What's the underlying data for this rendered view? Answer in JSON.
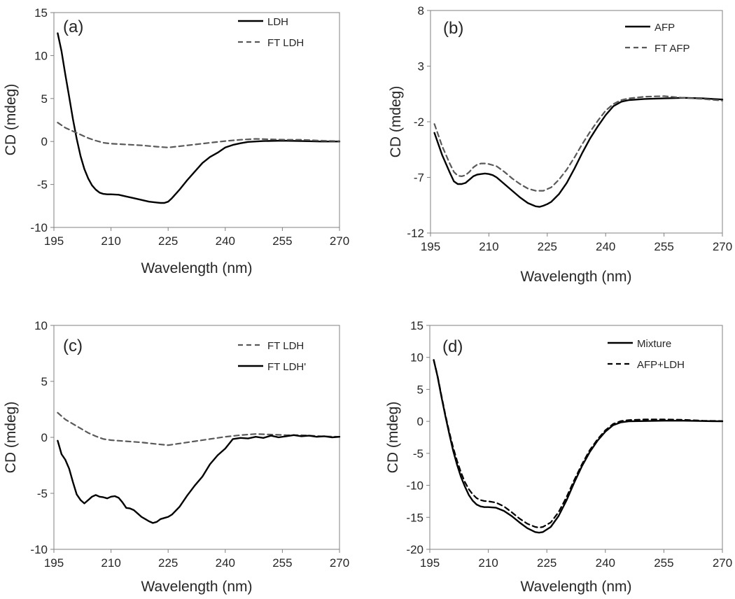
{
  "figure": {
    "panels": [
      "a",
      "b",
      "c",
      "d"
    ]
  },
  "chart_data": [
    {
      "panel": "a",
      "type": "line",
      "panel_label": "(a)",
      "xlabel": "Wavelength (nm)",
      "ylabel": "CD (mdeg)",
      "xlim": [
        195,
        270
      ],
      "ylim": [
        -10,
        15
      ],
      "xticks": [
        195,
        210,
        225,
        240,
        255,
        270
      ],
      "yticks": [
        -10,
        -5,
        0,
        5,
        10,
        15
      ],
      "legend_position": "top-right",
      "series": [
        {
          "name": "LDH",
          "style": "solid",
          "color": "#000000",
          "x": [
            196,
            197,
            198,
            199,
            200,
            201,
            202,
            203,
            204,
            205,
            206,
            207,
            208,
            209,
            210,
            212,
            214,
            216,
            218,
            220,
            222,
            223,
            224,
            225,
            226,
            228,
            230,
            232,
            234,
            236,
            238,
            240,
            242,
            244,
            246,
            248,
            250,
            255,
            260,
            265,
            270
          ],
          "y": [
            12.6,
            10.5,
            7.8,
            5.2,
            2.6,
            0.3,
            -1.7,
            -3.2,
            -4.3,
            -5.1,
            -5.6,
            -5.95,
            -6.1,
            -6.15,
            -6.15,
            -6.2,
            -6.4,
            -6.6,
            -6.8,
            -7.0,
            -7.1,
            -7.15,
            -7.15,
            -7.0,
            -6.6,
            -5.6,
            -4.5,
            -3.5,
            -2.5,
            -1.8,
            -1.3,
            -0.7,
            -0.4,
            -0.2,
            -0.05,
            0.0,
            0.05,
            0.1,
            0.05,
            0.0,
            0.0
          ]
        },
        {
          "name": "FT LDH",
          "style": "dashed",
          "color": "#595959",
          "x": [
            196,
            198,
            200,
            202,
            204,
            206,
            208,
            210,
            214,
            218,
            222,
            225,
            228,
            232,
            236,
            240,
            244,
            248,
            252,
            256,
            260,
            265,
            270
          ],
          "y": [
            2.2,
            1.6,
            1.2,
            0.8,
            0.4,
            0.1,
            -0.15,
            -0.25,
            -0.35,
            -0.45,
            -0.6,
            -0.7,
            -0.55,
            -0.35,
            -0.15,
            0.05,
            0.2,
            0.3,
            0.25,
            0.2,
            0.2,
            0.1,
            0.05
          ]
        }
      ]
    },
    {
      "panel": "b",
      "type": "line",
      "panel_label": "(b)",
      "xlabel": "Wavelength (nm)",
      "ylabel": "CD (mdeg)",
      "xlim": [
        195,
        270
      ],
      "ylim": [
        -12,
        8
      ],
      "xticks": [
        195,
        210,
        225,
        240,
        255,
        270
      ],
      "yticks": [
        -12,
        -7,
        -2,
        3,
        8
      ],
      "legend_position": "top-right",
      "series": [
        {
          "name": "AFP",
          "style": "solid",
          "color": "#000000",
          "x": [
            196,
            198,
            200,
            201,
            202,
            203,
            204,
            205,
            206,
            207,
            208,
            209,
            210,
            211,
            212,
            214,
            216,
            218,
            220,
            222,
            223,
            224,
            225,
            226,
            228,
            230,
            232,
            234,
            236,
            238,
            240,
            242,
            244,
            246,
            250,
            255,
            260,
            265,
            270
          ],
          "y": [
            -3.0,
            -5.0,
            -6.6,
            -7.35,
            -7.6,
            -7.6,
            -7.5,
            -7.2,
            -6.9,
            -6.75,
            -6.7,
            -6.65,
            -6.7,
            -6.8,
            -7.0,
            -7.6,
            -8.2,
            -8.8,
            -9.3,
            -9.6,
            -9.65,
            -9.55,
            -9.4,
            -9.2,
            -8.5,
            -7.5,
            -6.2,
            -4.8,
            -3.5,
            -2.4,
            -1.4,
            -0.6,
            -0.2,
            -0.05,
            0.05,
            0.1,
            0.15,
            0.1,
            0.0
          ]
        },
        {
          "name": "FT AFP",
          "style": "dashed",
          "color": "#595959",
          "x": [
            196,
            198,
            200,
            201,
            202,
            203,
            204,
            205,
            206,
            207,
            208,
            209,
            210,
            211,
            212,
            214,
            216,
            218,
            220,
            222,
            224,
            226,
            228,
            230,
            232,
            234,
            236,
            238,
            240,
            242,
            244,
            246,
            250,
            255,
            260,
            265,
            270
          ],
          "y": [
            -2.2,
            -4.2,
            -5.8,
            -6.5,
            -6.85,
            -6.9,
            -6.8,
            -6.5,
            -6.1,
            -5.85,
            -5.75,
            -5.75,
            -5.8,
            -5.9,
            -6.0,
            -6.5,
            -7.1,
            -7.6,
            -8.0,
            -8.2,
            -8.2,
            -7.9,
            -7.2,
            -6.3,
            -5.2,
            -4.0,
            -2.9,
            -1.9,
            -1.0,
            -0.4,
            -0.05,
            0.1,
            0.25,
            0.3,
            0.15,
            0.05,
            -0.1
          ]
        }
      ]
    },
    {
      "panel": "c",
      "type": "line",
      "panel_label": "(c)",
      "xlabel": "Wavelength (nm)",
      "ylabel": "CD (mdeg)",
      "xlim": [
        195,
        270
      ],
      "ylim": [
        -10,
        10
      ],
      "xticks": [
        195,
        210,
        225,
        240,
        255,
        270
      ],
      "yticks": [
        -10,
        -5,
        0,
        5,
        10
      ],
      "legend_position": "top-right",
      "series": [
        {
          "name": "FT LDH",
          "style": "dashed",
          "color": "#595959",
          "x": [
            196,
            198,
            200,
            202,
            204,
            206,
            208,
            210,
            214,
            218,
            222,
            225,
            228,
            232,
            236,
            240,
            244,
            248,
            252,
            256,
            260,
            265,
            270
          ],
          "y": [
            2.2,
            1.6,
            1.2,
            0.8,
            0.4,
            0.1,
            -0.15,
            -0.25,
            -0.35,
            -0.45,
            -0.6,
            -0.7,
            -0.55,
            -0.35,
            -0.15,
            0.05,
            0.2,
            0.3,
            0.25,
            0.2,
            0.2,
            0.1,
            0.05
          ]
        },
        {
          "name": "FT LDH'",
          "style": "solid",
          "color": "#000000",
          "x": [
            196,
            197,
            198,
            199,
            200,
            201,
            202,
            203,
            204,
            205,
            206,
            207,
            208,
            209,
            210,
            211,
            212,
            213,
            214,
            215,
            216,
            217,
            218,
            219,
            220,
            221,
            222,
            223,
            224,
            225,
            226,
            228,
            230,
            232,
            234,
            236,
            238,
            240,
            242,
            244,
            246,
            248,
            250,
            252,
            254,
            256,
            258,
            260,
            262,
            264,
            266,
            268,
            270
          ],
          "y": [
            -0.3,
            -1.5,
            -2.0,
            -2.8,
            -4.0,
            -5.1,
            -5.6,
            -5.9,
            -5.6,
            -5.3,
            -5.15,
            -5.3,
            -5.35,
            -5.45,
            -5.3,
            -5.25,
            -5.4,
            -5.8,
            -6.3,
            -6.35,
            -6.5,
            -6.8,
            -7.1,
            -7.3,
            -7.5,
            -7.65,
            -7.55,
            -7.3,
            -7.2,
            -7.1,
            -6.9,
            -6.2,
            -5.2,
            -4.3,
            -3.5,
            -2.4,
            -1.6,
            -1.0,
            -0.15,
            -0.05,
            -0.1,
            0.05,
            -0.05,
            0.15,
            0.0,
            0.1,
            0.2,
            0.1,
            0.15,
            0.05,
            0.1,
            0.0,
            0.05
          ]
        }
      ]
    },
    {
      "panel": "d",
      "type": "line",
      "panel_label": "(d)",
      "xlabel": "Wavelength (nm)",
      "ylabel": "CD (mdeg)",
      "xlim": [
        195,
        270
      ],
      "ylim": [
        -20,
        15
      ],
      "xticks": [
        195,
        210,
        225,
        240,
        255,
        270
      ],
      "yticks": [
        -20,
        -15,
        -10,
        -5,
        0,
        5,
        10,
        15
      ],
      "legend_position": "top-right",
      "series": [
        {
          "name": "Mixture",
          "style": "solid",
          "color": "#000000",
          "x": [
            196,
            197,
            198,
            199,
            200,
            201,
            202,
            203,
            204,
            205,
            206,
            207,
            208,
            209,
            210,
            212,
            214,
            216,
            218,
            220,
            222,
            223,
            224,
            226,
            228,
            230,
            232,
            234,
            236,
            238,
            240,
            242,
            244,
            246,
            250,
            255,
            260,
            265,
            270
          ],
          "y": [
            9.6,
            7.0,
            3.8,
            0.8,
            -2.0,
            -4.6,
            -6.8,
            -8.7,
            -10.2,
            -11.5,
            -12.4,
            -13.0,
            -13.3,
            -13.4,
            -13.4,
            -13.5,
            -14.0,
            -14.8,
            -15.8,
            -16.7,
            -17.3,
            -17.4,
            -17.3,
            -16.5,
            -14.8,
            -12.4,
            -9.6,
            -7.0,
            -4.8,
            -3.0,
            -1.6,
            -0.6,
            -0.15,
            0.0,
            0.05,
            0.1,
            0.1,
            0.05,
            0.0
          ]
        },
        {
          "name": "AFP+LDH",
          "style": "dashed",
          "color": "#000000",
          "x": [
            196,
            197,
            198,
            199,
            200,
            201,
            202,
            203,
            204,
            205,
            206,
            207,
            208,
            209,
            210,
            212,
            214,
            216,
            218,
            220,
            222,
            223,
            224,
            226,
            228,
            230,
            232,
            234,
            236,
            238,
            240,
            242,
            244,
            246,
            250,
            255,
            260,
            265,
            270
          ],
          "y": [
            9.6,
            7.1,
            4.0,
            1.0,
            -1.7,
            -4.1,
            -6.2,
            -8.0,
            -9.5,
            -10.6,
            -11.4,
            -12.0,
            -12.3,
            -12.45,
            -12.5,
            -12.7,
            -13.3,
            -14.2,
            -15.2,
            -16.0,
            -16.5,
            -16.6,
            -16.5,
            -15.8,
            -14.2,
            -11.9,
            -9.2,
            -6.7,
            -4.5,
            -2.8,
            -1.4,
            -0.4,
            0.05,
            0.2,
            0.3,
            0.3,
            0.25,
            0.1,
            0.05
          ]
        }
      ]
    }
  ]
}
